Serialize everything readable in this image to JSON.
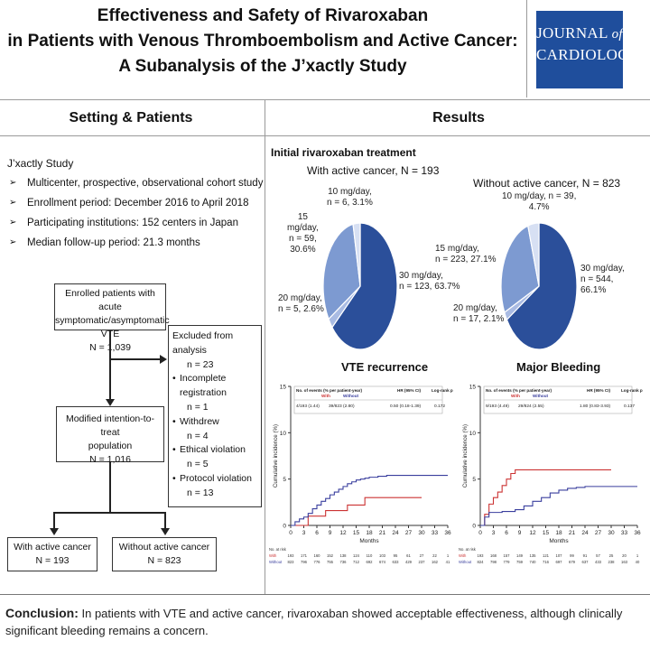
{
  "header": {
    "title_lines": [
      "Effectiveness and Safety of Rivaroxaban",
      "in Patients with Venous Thromboembolism and Active Cancer:",
      "A Subanalysis of the J’xactly Study"
    ],
    "journal_line1": "JOURNAL",
    "journal_of": "of",
    "journal_line2": "CARDIOLOGY"
  },
  "left": {
    "heading": "Setting & Patients",
    "study_label": "J’xactly Study",
    "bullets": [
      "Multicenter, prospective, observational cohort study",
      "Enrollment period: December 2016 to April 2018",
      "Participating institutions: 152 centers in Japan",
      "Median follow-up period: 21.3 months"
    ],
    "flow": {
      "enrolled_l1": "Enrolled patients with acute",
      "enrolled_l2": "symptomatic/asymptomatic VTE",
      "enrolled_n": "N = 1,039",
      "excluded_title": "Excluded from analysis",
      "excluded_n": "n = 23",
      "reasons": [
        {
          "label": "Incomplete registration",
          "n": "n = 1"
        },
        {
          "label": "Withdrew",
          "n": "n = 4"
        },
        {
          "label": "Ethical violation",
          "n": "n = 5"
        },
        {
          "label": "Protocol violation",
          "n": "n = 13"
        }
      ],
      "mitt_l1": "Modified intention-to-treat",
      "mitt_l2": "population",
      "mitt_n": "N = 1,016",
      "with_cancer": "With active cancer",
      "with_cancer_n": "N = 193",
      "without_cancer": "Without active cancer",
      "without_cancer_n": "N = 823"
    }
  },
  "results": {
    "heading": "Results",
    "initial_label": "Initial rivaroxaban treatment",
    "pie_with": {
      "title": "With active cancer, N = 193",
      "labels": {
        "d10_l1": "10 mg/day,",
        "d10_l2": "n = 6, 3.1%",
        "d15_l1": "15",
        "d15_l2": "mg/day,",
        "d15_l3": "n = 59,",
        "d15_l4": "30.6%",
        "d20_l1": "20 mg/day,",
        "d20_l2": "n = 5, 2.6%",
        "d30_l1": "30 mg/day,",
        "d30_l2": "n = 123, 63.7%"
      }
    },
    "pie_without": {
      "title": "Without active cancer, N = 823",
      "labels": {
        "d10_l1": "10 mg/day, n = 39,",
        "d10_l2": "4.7%",
        "d15_l1": "15 mg/day,",
        "d15_l2": "n = 223, 27.1%",
        "d20_l1": "20 mg/day,",
        "d20_l2": "n = 17, 2.1%",
        "d30_l1": "30 mg/day,",
        "d30_l2": "n = 544,",
        "d30_l3": "66.1%"
      }
    },
    "km_vte": {
      "title": "VTE recurrence",
      "ylabel": "Cumulative incidence (%)",
      "xlabel": "Months",
      "table_head_events": "No. of events (% per patient-year)",
      "with_label": "With",
      "without_label": "Without",
      "hr_head": "HR (95% CI)",
      "logrank_head": "Log-rank p",
      "events_with": "4/193 (1.44)",
      "events_without": "39/823 (2.80)",
      "hr": "0.50 (0.18-1.39)",
      "p": "0.172",
      "at_risk_head": "No. at risk",
      "at_risk_with_label": "With",
      "at_risk_without_label": "Without",
      "at_risk_with": [
        "193",
        "171",
        "160",
        "152",
        "138",
        "124",
        "110",
        "103",
        "95",
        "61",
        "27",
        "22",
        "1"
      ],
      "at_risk_without": [
        "823",
        "796",
        "776",
        "755",
        "736",
        "712",
        "692",
        "674",
        "633",
        "429",
        "237",
        "162",
        "41"
      ]
    },
    "km_bleed": {
      "title": "Major Bleeding",
      "ylabel": "Cumulative incidence (%)",
      "xlabel": "Months",
      "table_head_events": "No. of events (% per patient-year)",
      "with_label": "With",
      "without_label": "Without",
      "hr_head": "HR (95% CI)",
      "logrank_head": "Log-rank p",
      "events_with": "9/193 (4.49)",
      "events_without": "29/824 (2.55)",
      "hr": "1.80 (0.83-3.93)",
      "p": "0.137",
      "at_risk_head": "No. at risk",
      "at_risk_with_label": "With",
      "at_risk_without_label": "Without",
      "at_risk_with": [
        "193",
        "168",
        "157",
        "149",
        "135",
        "121",
        "107",
        "99",
        "91",
        "57",
        "25",
        "20",
        "1"
      ],
      "at_risk_without": [
        "824",
        "798",
        "779",
        "759",
        "740",
        "716",
        "697",
        "679",
        "637",
        "433",
        "238",
        "163",
        "40"
      ]
    }
  },
  "conclusion": {
    "label": "Conclusion:",
    "text": " In patients with VTE and active cancer, rivaroxaban showed acceptable effectiveness, although clinically significant bleeding remains a concern."
  },
  "colors": {
    "journal_blue": "#1f4e9c",
    "pie_30": "#2b4f9a",
    "pie_15": "#7d9ad1",
    "pie_20": "#a9bbe3",
    "pie_10": "#d7e0f3",
    "with_series": "#cc3333",
    "without_series": "#3a3f9e"
  },
  "chart_data": [
    {
      "type": "pie",
      "title": "With active cancer, N = 193",
      "categories": [
        "30 mg/day",
        "20 mg/day",
        "15 mg/day",
        "10 mg/day"
      ],
      "values": [
        63.7,
        2.6,
        30.6,
        3.1
      ],
      "counts": [
        123,
        5,
        59,
        6
      ]
    },
    {
      "type": "pie",
      "title": "Without active cancer, N = 823",
      "categories": [
        "30 mg/day",
        "20 mg/day",
        "15 mg/day",
        "10 mg/day"
      ],
      "values": [
        66.1,
        2.1,
        27.1,
        4.7
      ],
      "counts": [
        544,
        17,
        223,
        39
      ]
    },
    {
      "type": "line",
      "title": "VTE recurrence",
      "xlabel": "Months",
      "ylabel": "Cumulative incidence (%)",
      "xlim": [
        0,
        36
      ],
      "ylim": [
        0,
        15
      ],
      "xticks": [
        0,
        3,
        6,
        9,
        12,
        15,
        18,
        21,
        24,
        27,
        30,
        33,
        36
      ],
      "yticks": [
        0,
        5,
        10,
        15
      ],
      "series": [
        {
          "name": "With",
          "x": [
            0,
            3,
            4,
            7,
            8,
            12,
            13,
            16,
            17,
            30
          ],
          "y": [
            0,
            0,
            1.0,
            1.0,
            1.6,
            1.6,
            2.2,
            2.2,
            3.0,
            3.0
          ]
        },
        {
          "name": "Without",
          "x": [
            0,
            1,
            2,
            3,
            4,
            5,
            6,
            7,
            8,
            9,
            10,
            11,
            12,
            13,
            14,
            15,
            16,
            17,
            18,
            20,
            22,
            36
          ],
          "y": [
            0,
            0.4,
            0.7,
            0.9,
            1.3,
            1.8,
            2.2,
            2.6,
            2.9,
            3.3,
            3.6,
            3.9,
            4.2,
            4.5,
            4.7,
            4.9,
            5.0,
            5.1,
            5.2,
            5.3,
            5.4,
            5.4
          ]
        }
      ]
    },
    {
      "type": "line",
      "title": "Major Bleeding",
      "xlabel": "Months",
      "ylabel": "Cumulative incidence (%)",
      "xlim": [
        0,
        36
      ],
      "ylim": [
        0,
        15
      ],
      "xticks": [
        0,
        3,
        6,
        9,
        12,
        15,
        18,
        21,
        24,
        27,
        30,
        33,
        36
      ],
      "yticks": [
        0,
        5,
        10,
        15
      ],
      "series": [
        {
          "name": "With",
          "x": [
            0,
            1,
            2,
            3,
            4,
            5,
            6,
            7,
            8,
            30
          ],
          "y": [
            0,
            1.2,
            2.3,
            3.0,
            3.6,
            4.3,
            5.0,
            5.6,
            6.0,
            6.0
          ]
        },
        {
          "name": "Without",
          "x": [
            0,
            1,
            2,
            5,
            8,
            10,
            12,
            14,
            16,
            18,
            20,
            22,
            24,
            36
          ],
          "y": [
            0,
            0.9,
            1.4,
            1.5,
            1.7,
            2.1,
            2.6,
            3.0,
            3.5,
            3.8,
            4.0,
            4.1,
            4.2,
            4.2
          ]
        }
      ]
    }
  ]
}
